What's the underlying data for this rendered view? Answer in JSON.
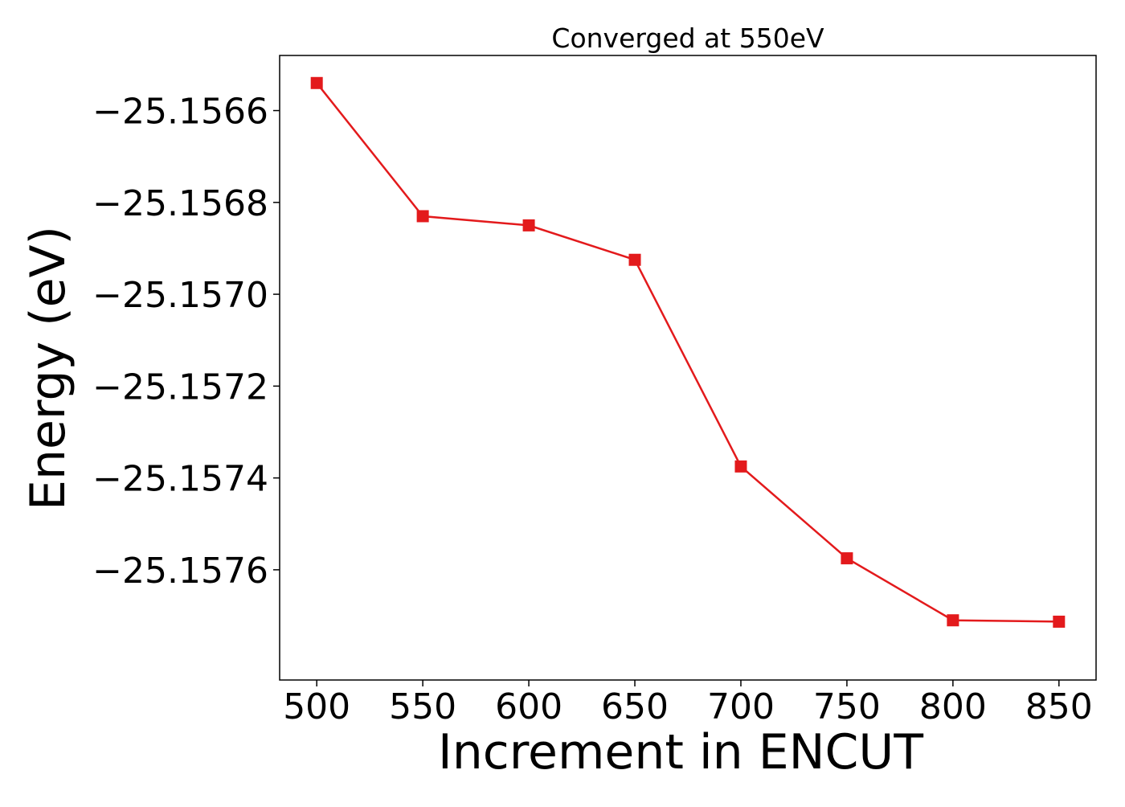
{
  "chart_data": {
    "type": "line",
    "title": "Converged at 550eV",
    "xlabel": "Increment in ENCUT",
    "ylabel": "Energy (eV)",
    "x": [
      500,
      550,
      600,
      650,
      700,
      750,
      800,
      850
    ],
    "series": [
      {
        "values": [
          -25.15654,
          -25.15683,
          -25.15685,
          -25.156925,
          -25.157375,
          -25.157575,
          -25.15771,
          -25.157713
        ],
        "color": "#e31a1c",
        "marker": "square"
      }
    ],
    "xticks": [
      500,
      550,
      600,
      650,
      700,
      750,
      800,
      850
    ],
    "xtick_labels": [
      "500",
      "550",
      "600",
      "650",
      "700",
      "750",
      "800",
      "850"
    ],
    "yticks": [
      -25.1566,
      -25.1568,
      -25.157,
      -25.1572,
      -25.1574,
      -25.1576
    ],
    "ytick_labels": [
      "−25.1566",
      "−25.1568",
      "−25.1570",
      "−25.1572",
      "−25.1574",
      "−25.1576"
    ],
    "xlim": [
      482.5,
      867.5
    ],
    "ylim": [
      -25.15784,
      -25.15648
    ],
    "grid": false,
    "legend": "none"
  }
}
